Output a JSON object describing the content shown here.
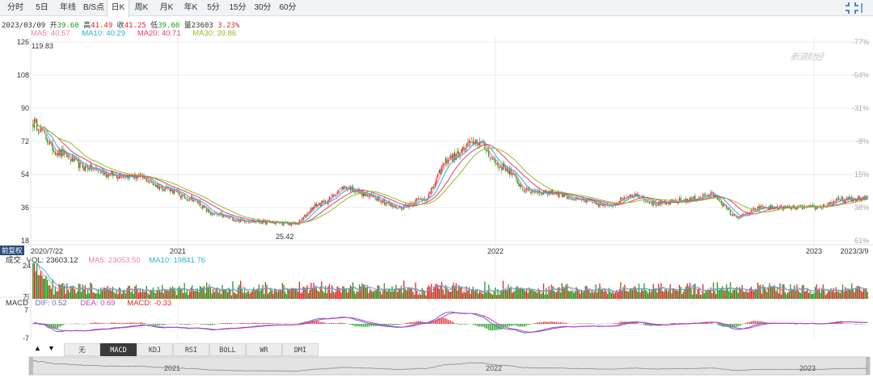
{
  "tabs": [
    {
      "label": "分时"
    },
    {
      "label": "5日"
    },
    {
      "label": "年线"
    },
    {
      "label": "B/S点"
    },
    {
      "label": "日K"
    },
    {
      "label": "周K"
    },
    {
      "label": "月K"
    },
    {
      "label": "年K"
    },
    {
      "label": "5分"
    },
    {
      "label": "15分"
    },
    {
      "label": "30分"
    },
    {
      "label": "60分"
    }
  ],
  "active_tab": "日K",
  "info": {
    "date": "2023/03/09",
    "open_label": "开",
    "open": "39.60",
    "high_label": "高",
    "high": "41.49",
    "close_label": "收",
    "close": "41.25",
    "low_label": "低",
    "low": "39.60",
    "volume_label": "量",
    "volume": "23603",
    "change": "3.23%"
  },
  "ma_legend": [
    {
      "label": "MA5: 40.57",
      "color": "#f47ba8"
    },
    {
      "label": "MA10: 40.29",
      "color": "#2ab0d6"
    },
    {
      "label": "MA20: 40.71",
      "color": "#ea3a78"
    },
    {
      "label": "MA30: 39.86",
      "color": "#8fbf24"
    }
  ],
  "annotations": {
    "max_price": "119.83",
    "min_price": "25.42",
    "fuquan": "前复权",
    "watermark": "新浪财经"
  },
  "vol_legend": {
    "title": "成交",
    "vol": "VOL: 23603.12",
    "ma5": "MA5: 23053.50",
    "ma10": "MA10: 19841.76",
    "colors": {
      "vol": "#333333",
      "ma5": "#f47ba8",
      "ma10": "#2ab0d6"
    }
  },
  "vol_axis": {
    "top": "24",
    "unit": "万"
  },
  "macd_legend": {
    "title": "MACD",
    "dif": "DIF: 0.52",
    "dea": "DEA: 0.69",
    "macd": "MACD: -0.33",
    "colors": {
      "dif": "#5b6ad0",
      "dea": "#c23ec7",
      "macd": "#e3262a"
    }
  },
  "macd_axis": {
    "top": "7",
    "bottom": "-7"
  },
  "indicator_tabs": [
    {
      "label": "无"
    },
    {
      "label": "MACD"
    },
    {
      "label": "KDJ"
    },
    {
      "label": "RSI"
    },
    {
      "label": "BOLL"
    },
    {
      "label": "WR"
    },
    {
      "label": "DMI"
    }
  ],
  "active_indicator": "MACD",
  "nav_arrows": {
    "up": "▲",
    "down": "▼"
  },
  "navigator_labels": [
    "2021",
    "2022",
    "2023"
  ],
  "colors": {
    "up": "#e3262a",
    "down": "#18a118",
    "grid": "#eeeeee",
    "pct_axis": "#aaaaaa"
  },
  "chart_data": {
    "type": "candlestick",
    "price_axis": {
      "ticks": [
        18,
        36,
        54,
        72,
        90,
        108,
        126
      ],
      "ylim": [
        18,
        126
      ]
    },
    "pct_axis": {
      "ticks": [
        "61%",
        "38%",
        "15%",
        "-8%",
        "-31%",
        "-54%",
        "-77%"
      ]
    },
    "x_ticks": [
      "2020/7/22",
      "2021",
      "2022",
      "2023",
      "2023/3/9"
    ],
    "close_anchors": [
      {
        "date": "2020/7/22",
        "value": 82
      },
      {
        "date": "2020/8",
        "value": 66
      },
      {
        "date": "2020/9",
        "value": 58
      },
      {
        "date": "2020/10",
        "value": 54
      },
      {
        "date": "2020/11",
        "value": 53
      },
      {
        "date": "2020/12",
        "value": 47
      },
      {
        "date": "2021/1",
        "value": 41
      },
      {
        "date": "2021/2",
        "value": 32
      },
      {
        "date": "2021/3",
        "value": 29
      },
      {
        "date": "2021/4",
        "value": 28
      },
      {
        "date": "2021/5",
        "value": 27
      },
      {
        "date": "2021/6",
        "value": 38
      },
      {
        "date": "2021/7",
        "value": 47
      },
      {
        "date": "2021/8",
        "value": 42
      },
      {
        "date": "2021/9",
        "value": 36
      },
      {
        "date": "2021/10",
        "value": 41
      },
      {
        "date": "2021/11",
        "value": 63
      },
      {
        "date": "2021/12",
        "value": 72
      },
      {
        "date": "2022/1",
        "value": 58
      },
      {
        "date": "2022/2",
        "value": 45
      },
      {
        "date": "2022/3",
        "value": 44
      },
      {
        "date": "2022/4",
        "value": 40
      },
      {
        "date": "2022/5",
        "value": 37
      },
      {
        "date": "2022/6",
        "value": 43
      },
      {
        "date": "2022/7",
        "value": 38
      },
      {
        "date": "2022/8",
        "value": 40
      },
      {
        "date": "2022/9",
        "value": 43
      },
      {
        "date": "2022/10",
        "value": 31
      },
      {
        "date": "2022/11",
        "value": 36
      },
      {
        "date": "2022/12",
        "value": 36
      },
      {
        "date": "2023/1",
        "value": 36
      },
      {
        "date": "2023/2",
        "value": 40
      },
      {
        "date": "2023/3/9",
        "value": 41.25
      }
    ]
  }
}
